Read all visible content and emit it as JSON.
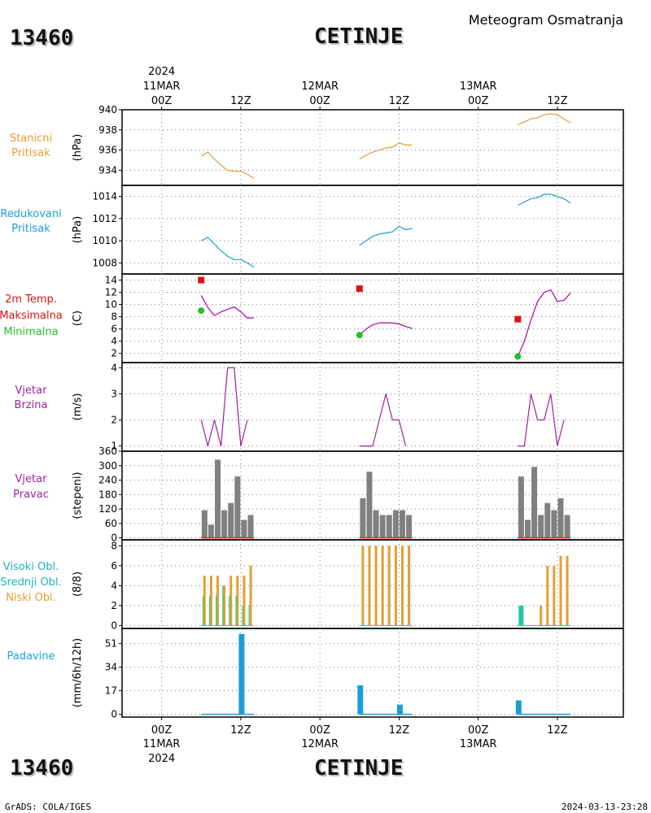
{
  "header": {
    "station_id": "13460",
    "station_name": "CETINJE",
    "subtitle": "Meteogram Osmatranja"
  },
  "footer": {
    "station_id": "13460",
    "station_name": "CETINJE",
    "credit": "GrADS: COLA/IGES",
    "timestamp": "2024-03-13-23:28"
  },
  "time_axis": {
    "year": "2024",
    "days": [
      "11MAR",
      "12MAR",
      "13MAR"
    ],
    "hour_labels": [
      "00Z",
      "12Z"
    ],
    "range_hours": [
      -6,
      70
    ],
    "labeled_ticks": [
      {
        "h": 0,
        "hour": "00Z",
        "day": "11MAR",
        "year": "2024"
      },
      {
        "h": 12,
        "hour": "12Z"
      },
      {
        "h": 24,
        "hour": "00Z",
        "day": "12MAR"
      },
      {
        "h": 36,
        "hour": "12Z"
      },
      {
        "h": 48,
        "hour": "00Z",
        "day": "13MAR"
      },
      {
        "h": 60,
        "hour": "12Z"
      }
    ],
    "grid_hours": [
      0,
      12,
      24,
      36,
      48,
      60
    ]
  },
  "colors": {
    "station_pressure": "#e0a030",
    "reduced_pressure": "#1a9ed9",
    "temperature": "#b000b0",
    "temp_max": "#e01010",
    "temp_min": "#20c020",
    "wind": "#a020a0",
    "direction_bar": "#808080",
    "direction_base": "#e02020",
    "cloud_low": "#e0a030",
    "cloud_mid": "#70c070",
    "cloud_high": "#20c8a0",
    "precip": "#1a9ed9"
  },
  "chart_data": [
    {
      "type": "line",
      "panel": "station_pressure",
      "labels": [
        "Stanicni",
        "Pritisak"
      ],
      "label_color": "#e0a030",
      "ylabel": "(hPa)",
      "ylim": [
        932.5,
        940
      ],
      "yticks": [
        934,
        936,
        938,
        940
      ],
      "grid": true,
      "series": [
        {
          "segments": [
            [
              [
                6,
                935.4
              ],
              [
                7,
                935.8
              ],
              [
                8,
                935.1
              ],
              [
                9,
                934.5
              ],
              [
                10,
                934.0
              ],
              [
                11,
                933.9
              ],
              [
                12,
                933.9
              ],
              [
                13,
                933.6
              ],
              [
                14,
                933.2
              ]
            ],
            [
              [
                30,
                935.1
              ],
              [
                31,
                935.5
              ],
              [
                32,
                935.8
              ],
              [
                33,
                936.0
              ],
              [
                34,
                936.2
              ],
              [
                35,
                936.3
              ],
              [
                36,
                936.7
              ],
              [
                37,
                936.5
              ],
              [
                38,
                936.5
              ]
            ],
            [
              [
                54,
                938.5
              ],
              [
                55,
                938.8
              ],
              [
                56,
                939.1
              ],
              [
                57,
                939.2
              ],
              [
                58,
                939.5
              ],
              [
                59,
                939.6
              ],
              [
                60,
                939.5
              ],
              [
                61,
                939.1
              ],
              [
                62,
                938.7
              ]
            ]
          ]
        }
      ]
    },
    {
      "type": "line",
      "panel": "reduced_pressure",
      "labels": [
        "Redukovani",
        "Pritisak"
      ],
      "label_color": "#1a9ed9",
      "ylabel": "(hPa)",
      "ylim": [
        1007,
        1015
      ],
      "yticks": [
        1008,
        1010,
        1012,
        1014
      ],
      "grid": true,
      "series": [
        {
          "segments": [
            [
              [
                6,
                1010.0
              ],
              [
                7,
                1010.3
              ],
              [
                8,
                1009.7
              ],
              [
                9,
                1009.1
              ],
              [
                10,
                1008.6
              ],
              [
                11,
                1008.3
              ],
              [
                12,
                1008.3
              ],
              [
                13,
                1008.0
              ],
              [
                14,
                1007.6
              ]
            ],
            [
              [
                30,
                1009.6
              ],
              [
                31,
                1010.0
              ],
              [
                32,
                1010.4
              ],
              [
                33,
                1010.6
              ],
              [
                34,
                1010.7
              ],
              [
                35,
                1010.8
              ],
              [
                36,
                1011.3
              ],
              [
                37,
                1011.0
              ],
              [
                38,
                1011.1
              ]
            ],
            [
              [
                54,
                1013.2
              ],
              [
                55,
                1013.5
              ],
              [
                56,
                1013.8
              ],
              [
                57,
                1013.9
              ],
              [
                58,
                1014.2
              ],
              [
                59,
                1014.2
              ],
              [
                60,
                1014.0
              ],
              [
                61,
                1013.8
              ],
              [
                62,
                1013.4
              ]
            ]
          ]
        }
      ]
    },
    {
      "type": "line",
      "panel": "temperature",
      "labels": [
        "2m Temp.",
        "Maksimalna",
        "Minimalna"
      ],
      "label_colors": [
        "#e01010",
        "#e01010",
        "#20c020"
      ],
      "ylabel": "(C)",
      "ylim": [
        0.5,
        15
      ],
      "yticks": [
        2,
        4,
        6,
        8,
        10,
        12,
        14
      ],
      "grid": true,
      "series": [
        {
          "segments": [
            [
              [
                6,
                11.5
              ],
              [
                7,
                9.5
              ],
              [
                8,
                8.2
              ],
              [
                9,
                8.8
              ],
              [
                10,
                9.2
              ],
              [
                11,
                9.6
              ],
              [
                12,
                8.8
              ],
              [
                13,
                7.8
              ],
              [
                14,
                7.8
              ]
            ],
            [
              [
                30,
                5.0
              ],
              [
                31,
                6.0
              ],
              [
                32,
                6.7
              ],
              [
                33,
                7.0
              ],
              [
                34,
                7.0
              ],
              [
                35,
                7.0
              ],
              [
                36,
                6.8
              ],
              [
                37,
                6.4
              ],
              [
                38,
                6.1
              ]
            ],
            [
              [
                54,
                1.5
              ],
              [
                55,
                4.0
              ],
              [
                56,
                7.5
              ],
              [
                57,
                10.5
              ],
              [
                58,
                12.0
              ],
              [
                59,
                12.4
              ],
              [
                60,
                10.5
              ],
              [
                61,
                10.7
              ],
              [
                62,
                11.9
              ]
            ]
          ]
        }
      ],
      "max_markers": [
        [
          6,
          14.0
        ],
        [
          30,
          12.6
        ],
        [
          54,
          7.6
        ]
      ],
      "min_markers": [
        [
          6,
          9.0
        ],
        [
          30,
          5.0
        ],
        [
          54,
          1.5
        ]
      ]
    },
    {
      "type": "line",
      "panel": "wind_speed",
      "labels": [
        "Vjetar",
        "Brzina"
      ],
      "label_color": "#a020a0",
      "ylabel": "(m/s)",
      "ylim": [
        0.8,
        4.2
      ],
      "yticks": [
        1,
        2,
        3,
        4
      ],
      "grid": true,
      "series": [
        {
          "segments": [
            [
              [
                6,
                2
              ],
              [
                7,
                1
              ],
              [
                8,
                2
              ],
              [
                9,
                1
              ],
              [
                10,
                4
              ],
              [
                11,
                4
              ],
              [
                12,
                1
              ],
              [
                13,
                2
              ]
            ],
            [
              [
                30,
                1
              ],
              [
                31,
                1
              ],
              [
                32,
                1
              ],
              [
                33,
                2
              ],
              [
                34,
                3
              ],
              [
                35,
                2
              ],
              [
                36,
                2
              ],
              [
                37,
                1
              ]
            ],
            [
              [
                54,
                1
              ],
              [
                55,
                1
              ],
              [
                56,
                3
              ],
              [
                57,
                2
              ],
              [
                58,
                2
              ],
              [
                59,
                3
              ],
              [
                60,
                1
              ],
              [
                61,
                2
              ]
            ]
          ]
        }
      ]
    },
    {
      "type": "bar",
      "panel": "wind_direction",
      "labels": [
        "Vjetar",
        "Pravac"
      ],
      "label_color": "#a020a0",
      "ylabel": "(stepeni)",
      "ylim": [
        -8,
        360
      ],
      "yticks": [
        0,
        60,
        120,
        180,
        240,
        300,
        360
      ],
      "grid": true,
      "x": [
        6,
        7,
        8,
        9,
        10,
        11,
        12,
        13,
        14
      ],
      "groups": [
        [
          115,
          55,
          325,
          115,
          145,
          255,
          75,
          95
        ],
        [
          165,
          275,
          115,
          95,
          95,
          115,
          115,
          95
        ],
        [
          255,
          75,
          295,
          95,
          145,
          115,
          165,
          95
        ]
      ],
      "group_start_hours": [
        6,
        30,
        54
      ]
    },
    {
      "type": "bar",
      "panel": "clouds",
      "labels": [
        "Visoki Obl.",
        "Srednji Obl.",
        "Niski Obl."
      ],
      "label_colors": [
        "#20b0b8",
        "#20b0b8",
        "#e0a030"
      ],
      "ylabel": "(8/8)",
      "ylim": [
        -0.3,
        8.6
      ],
      "yticks": [
        0,
        2,
        4,
        6,
        8
      ],
      "grid": true,
      "group_start_hours": [
        6,
        30,
        54
      ],
      "low": [
        [
          5,
          5,
          5,
          4,
          5,
          5,
          5,
          6
        ],
        [
          8,
          8,
          8,
          8,
          8,
          8,
          8,
          8
        ],
        [
          0,
          0,
          0,
          2,
          6,
          6,
          7,
          7
        ]
      ],
      "mid": [
        [
          3,
          3,
          3,
          4,
          3,
          3,
          2,
          2
        ],
        [
          0,
          0,
          0,
          0,
          0,
          0,
          0,
          0
        ],
        [
          0,
          0,
          0,
          0,
          0,
          0,
          0,
          0
        ]
      ],
      "high": [
        [
          0,
          0,
          0,
          0,
          0,
          0,
          0,
          0
        ],
        [
          0,
          0,
          0,
          0,
          0,
          0,
          0,
          0
        ],
        [
          2,
          0,
          0,
          0,
          0,
          0,
          0,
          0
        ]
      ]
    },
    {
      "type": "bar",
      "panel": "precipitation",
      "labels": [
        "Padavine"
      ],
      "label_color": "#1a9ed9",
      "ylabel": "(mm/6h/12h)",
      "ylim": [
        -2,
        62
      ],
      "yticks": [
        0,
        17,
        34,
        51
      ],
      "grid": true,
      "bars": [
        {
          "h": 12,
          "value": 58
        },
        {
          "h": 30,
          "value": 21
        },
        {
          "h": 36,
          "value": 7
        },
        {
          "h": 54,
          "value": 10
        }
      ],
      "trace_ranges": [
        [
          6,
          14
        ],
        [
          30,
          38
        ],
        [
          54,
          62
        ]
      ]
    }
  ]
}
